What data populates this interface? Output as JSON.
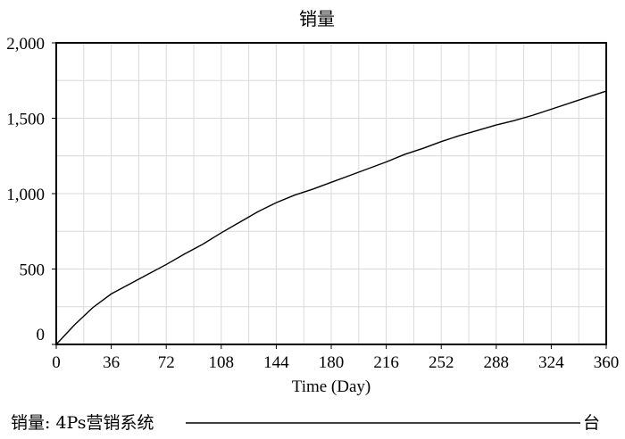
{
  "chart_data": {
    "type": "line",
    "title": "销量",
    "xlabel": "Time (Day)",
    "ylabel": "",
    "xlim": [
      0,
      360
    ],
    "ylim": [
      0,
      2000
    ],
    "x_ticks": [
      0,
      36,
      72,
      108,
      144,
      180,
      216,
      252,
      288,
      324,
      360
    ],
    "x_tick_labels": [
      "0",
      "36",
      "72",
      "108",
      "144",
      "180",
      "216",
      "252",
      "288",
      "324",
      "360"
    ],
    "y_ticks": [
      0,
      500,
      1000,
      1500,
      2000
    ],
    "y_tick_labels": [
      "0",
      "500",
      "1,000",
      "1,500",
      "2,000"
    ],
    "grid": true,
    "legend": {
      "position": "bottom",
      "label": "销量: 4Ps营销系统",
      "unit": "台"
    },
    "series": [
      {
        "name": "销量: 4Ps营销系统",
        "color": "#000000",
        "x": [
          0,
          12,
          24,
          36,
          48,
          60,
          72,
          84,
          96,
          108,
          120,
          132,
          144,
          156,
          168,
          180,
          192,
          204,
          216,
          228,
          240,
          252,
          264,
          276,
          288,
          300,
          312,
          324,
          336,
          348,
          360
        ],
        "y": [
          0,
          130,
          245,
          335,
          400,
          465,
          530,
          600,
          665,
          740,
          810,
          880,
          940,
          990,
          1030,
          1075,
          1120,
          1165,
          1210,
          1260,
          1300,
          1345,
          1385,
          1420,
          1455,
          1485,
          1520,
          1560,
          1600,
          1640,
          1680
        ]
      }
    ]
  }
}
